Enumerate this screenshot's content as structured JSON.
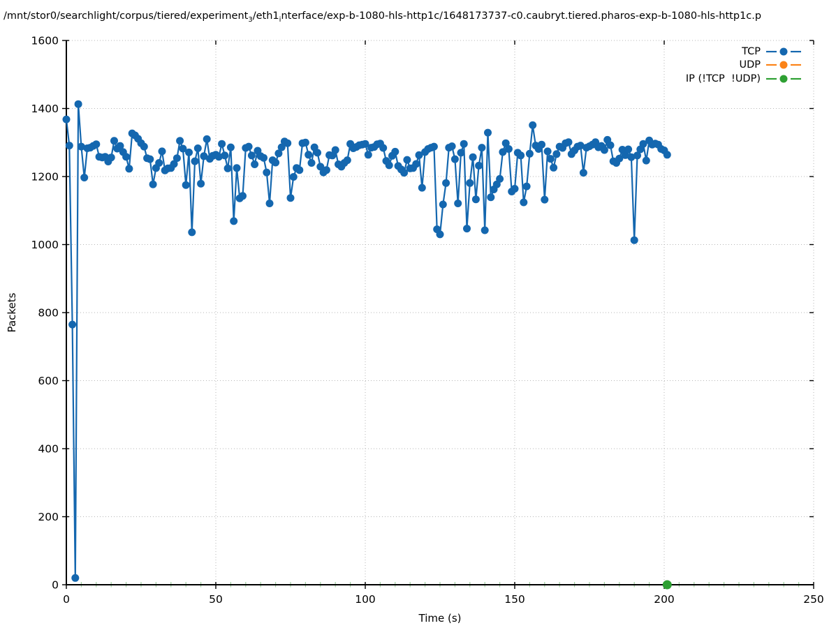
{
  "figure": {
    "title_part1": "/mnt/stor0/searchlight/corpus/tiered/experiment",
    "title_sub1": "3",
    "title_part2": "/eth1",
    "title_sub2": "i",
    "title_part3": "nterface/exp-b-1080-hls-http1c/1648173737-c0.caubryt.tiered.pharos-exp-b-1080-hls-http1c.p"
  },
  "axes": {
    "xlabel": "Time (s)",
    "ylabel": "Packets"
  },
  "legend": {
    "items": [
      {
        "label": "TCP",
        "color": "#1467af"
      },
      {
        "label": "UDP",
        "color": "#fb8318"
      },
      {
        "label": "IP (!TCP  !UDP)",
        "color": "#2ea033"
      }
    ]
  },
  "colors": {
    "axis": "#000000",
    "grid": "#b5b5b5",
    "minor_tick": "#9fd09f",
    "background": "#ffffff"
  },
  "chart_data": {
    "type": "line",
    "title": "/mnt/stor0/searchlight/corpus/tiered/experiment₃/eth1ᵢnterface/exp-b-1080-hls-http1c/1648173737-c0.caubryt.tiered.pharos-exp-b-1080-hls-http1c.p",
    "xlabel": "Time (s)",
    "ylabel": "Packets",
    "xlim": [
      0,
      250
    ],
    "ylim": [
      0,
      1600
    ],
    "xticks": [
      0,
      50,
      100,
      150,
      200,
      250
    ],
    "yticks": [
      0,
      200,
      400,
      600,
      800,
      1000,
      1200,
      1400,
      1600
    ],
    "x_minor_step": 5,
    "grid": "dotted at major ticks",
    "legend_position": "top-right inside plot",
    "marker": "filled-circle",
    "series": [
      {
        "name": "TCP",
        "color": "#1467af",
        "x_start": 0,
        "x_step": 1,
        "x_note": "one sample per second, t = 0..201 s; values estimated from pixels",
        "y": [
          1368,
          1291,
          765,
          20,
          1413,
          1288,
          1197,
          1283,
          1285,
          1290,
          1295,
          1258,
          1256,
          1258,
          1244,
          1256,
          1305,
          1282,
          1290,
          1272,
          1258,
          1223,
          1327,
          1321,
          1311,
          1298,
          1288,
          1254,
          1251,
          1177,
          1225,
          1240,
          1274,
          1218,
          1224,
          1225,
          1237,
          1254,
          1305,
          1282,
          1175,
          1271,
          1036,
          1245,
          1283,
          1179,
          1260,
          1310,
          1252,
          1261,
          1264,
          1258,
          1296,
          1262,
          1224,
          1286,
          1069,
          1225,
          1136,
          1143,
          1284,
          1288,
          1262,
          1236,
          1276,
          1260,
          1255,
          1212,
          1121,
          1248,
          1241,
          1268,
          1286,
          1303,
          1298,
          1137,
          1199,
          1225,
          1219,
          1298,
          1300,
          1264,
          1240,
          1286,
          1270,
          1229,
          1212,
          1219,
          1263,
          1262,
          1278,
          1236,
          1229,
          1240,
          1248,
          1296,
          1283,
          1287,
          1292,
          1294,
          1296,
          1264,
          1285,
          1287,
          1295,
          1297,
          1284,
          1246,
          1233,
          1261,
          1273,
          1231,
          1221,
          1211,
          1249,
          1224,
          1225,
          1237,
          1263,
          1167,
          1272,
          1281,
          1285,
          1288,
          1045,
          1030,
          1118,
          1181,
          1285,
          1289,
          1251,
          1121,
          1270,
          1296,
          1047,
          1181,
          1257,
          1133,
          1232,
          1285,
          1042,
          1329,
          1139,
          1162,
          1177,
          1193,
          1272,
          1298,
          1281,
          1156,
          1164,
          1270,
          1262,
          1124,
          1171,
          1267,
          1351,
          1291,
          1281,
          1294,
          1132,
          1274,
          1252,
          1226,
          1266,
          1288,
          1284,
          1298,
          1301,
          1266,
          1277,
          1288,
          1291,
          1211,
          1285,
          1289,
          1294,
          1301,
          1286,
          1290,
          1278,
          1308,
          1292,
          1245,
          1240,
          1253,
          1279,
          1263,
          1280,
          1257,
          1013,
          1262,
          1280,
          1296,
          1247,
          1306,
          1294,
          1297,
          1294,
          1281,
          1277,
          1264
        ]
      },
      {
        "name": "UDP",
        "color": "#fb8318",
        "x": [],
        "y": [],
        "note": "no visible data points"
      },
      {
        "name": "IP (!TCP  !UDP)",
        "color": "#2ea033",
        "x": [
          201
        ],
        "y": [
          0
        ]
      }
    ]
  }
}
